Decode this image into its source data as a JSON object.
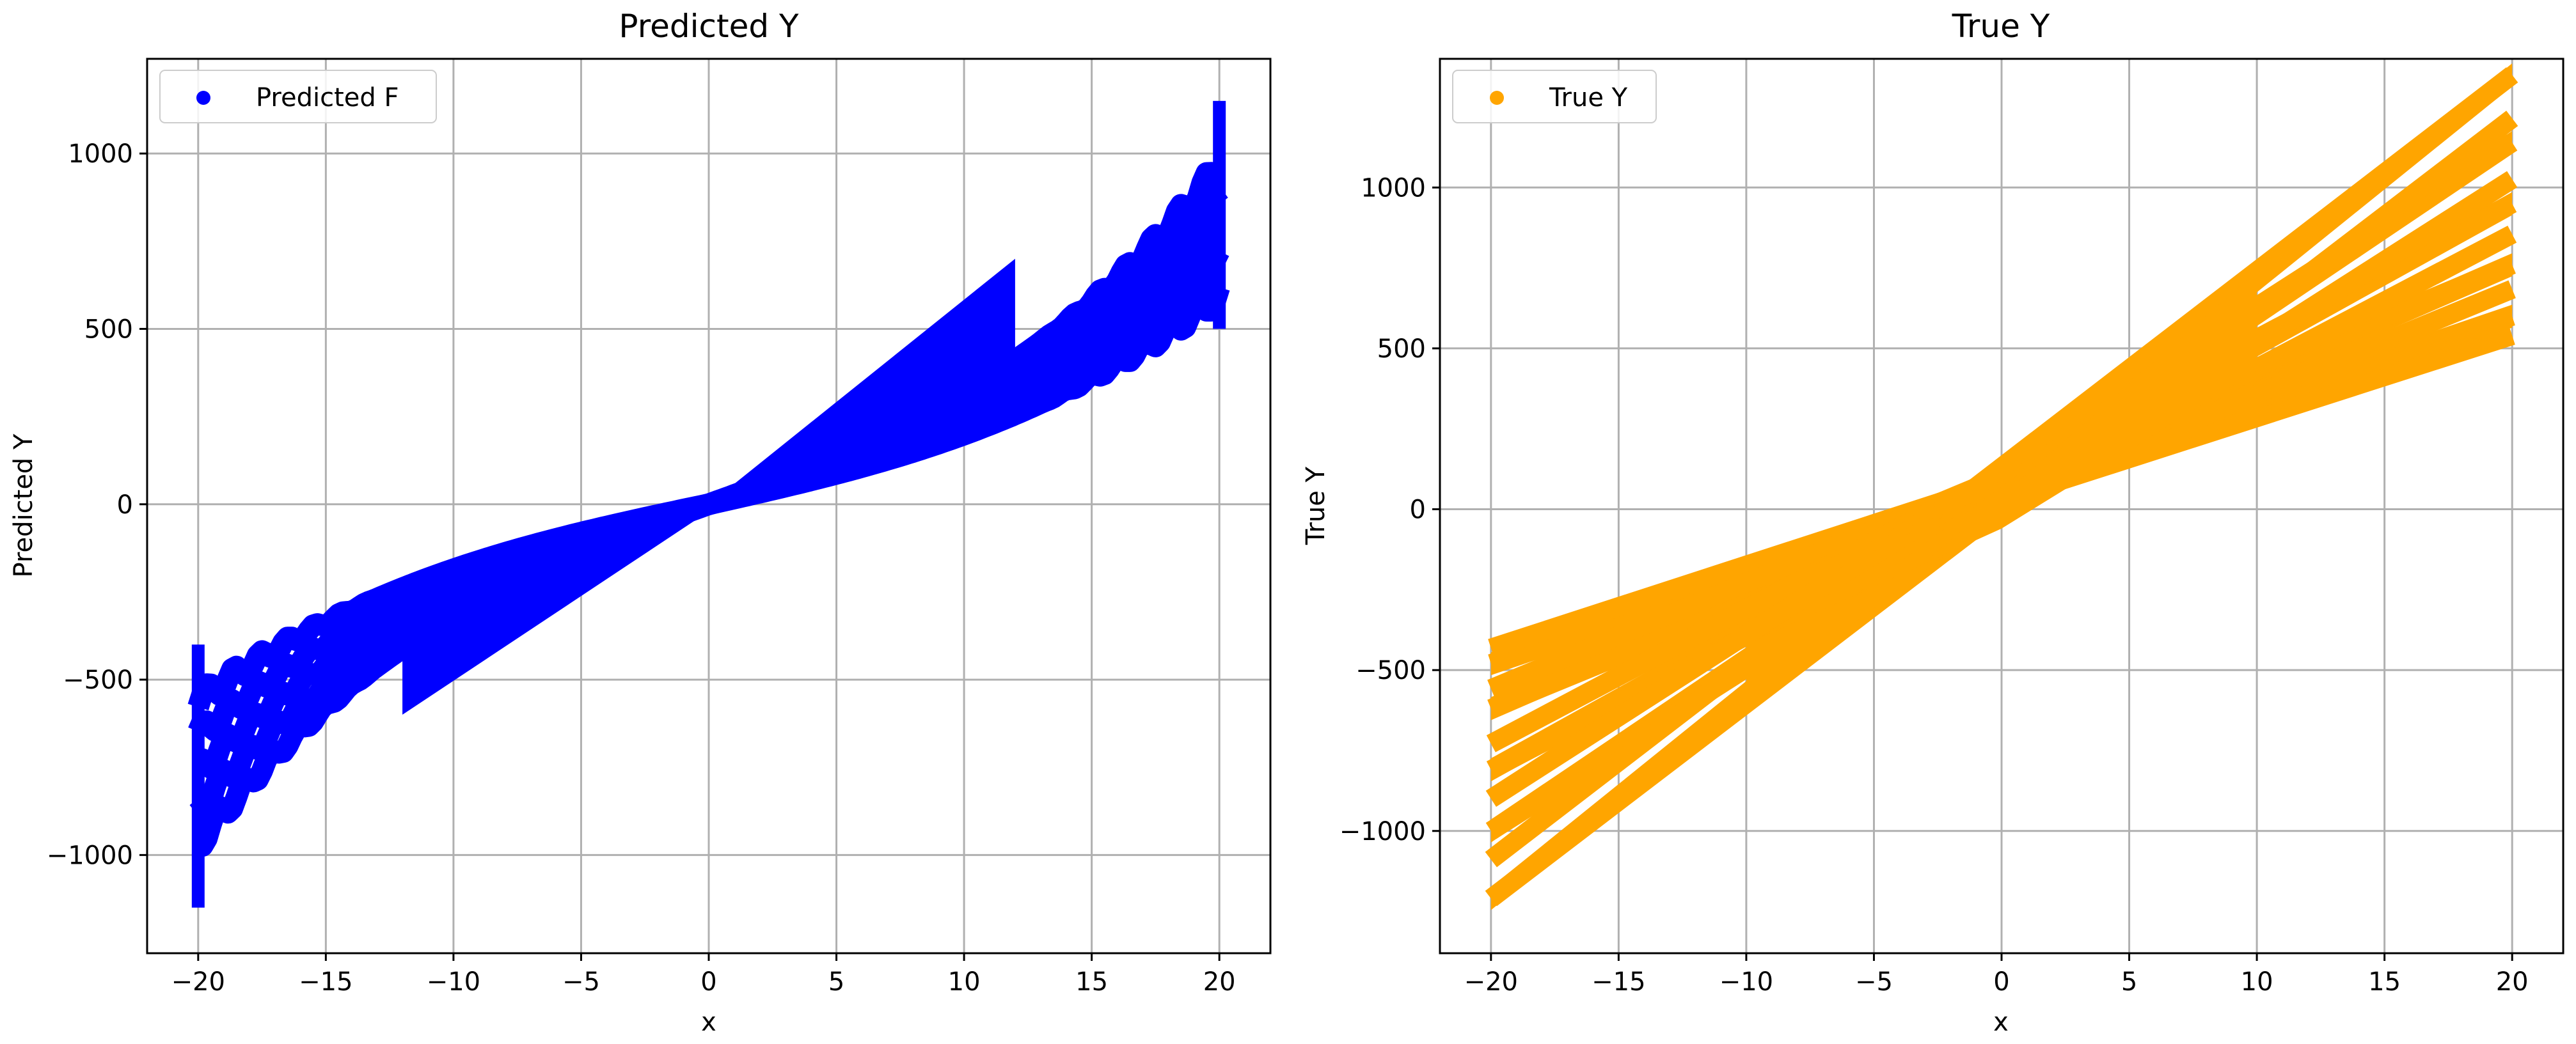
{
  "chart_data": [
    {
      "type": "scatter",
      "title": "Predicted Y",
      "xlabel": "x",
      "ylabel": "Predicted Y",
      "xlim": [
        -22,
        22
      ],
      "ylim": [
        -1280,
        1270
      ],
      "xticks": [
        -20,
        -15,
        -10,
        -5,
        0,
        5,
        10,
        15,
        20
      ],
      "yticks": [
        -1000,
        -500,
        0,
        500,
        1000
      ],
      "grid": true,
      "legend_position": "top-left",
      "series": [
        {
          "name": "Predicted F",
          "color": "#0000ff",
          "style": "wavy-fan",
          "x_range": [
            -20,
            20
          ],
          "curves": [
            {
              "y_start": -560,
              "y_end": 600
            },
            {
              "y_start": -660,
              "y_end": 690
            },
            {
              "y_start": -760,
              "y_end": 780
            },
            {
              "y_start": -860,
              "y_end": 870
            },
            {
              "y_start": -960,
              "y_end": 960
            }
          ]
        }
      ]
    },
    {
      "type": "scatter",
      "title": "True Y",
      "xlabel": "x",
      "ylabel": "True Y",
      "xlim": [
        -22,
        22
      ],
      "ylim": [
        -1380,
        1400
      ],
      "xticks": [
        -20,
        -15,
        -10,
        -5,
        0,
        5,
        10,
        15,
        20
      ],
      "yticks": [
        -1000,
        -500,
        0,
        500,
        1000
      ],
      "grid": true,
      "legend_position": "top-left",
      "series": [
        {
          "name": "True Y",
          "color": "#ffa500",
          "style": "linear-fan",
          "x_range": [
            -20,
            20
          ],
          "lines": [
            {
              "y_start": -480,
              "y_end": 600
            },
            {
              "y_start": -620,
              "y_end": 760
            },
            {
              "y_start": -810,
              "y_end": 950
            },
            {
              "y_start": -1000,
              "y_end": 1140
            },
            {
              "y_start": -1210,
              "y_end": 1350
            }
          ]
        }
      ]
    }
  ]
}
